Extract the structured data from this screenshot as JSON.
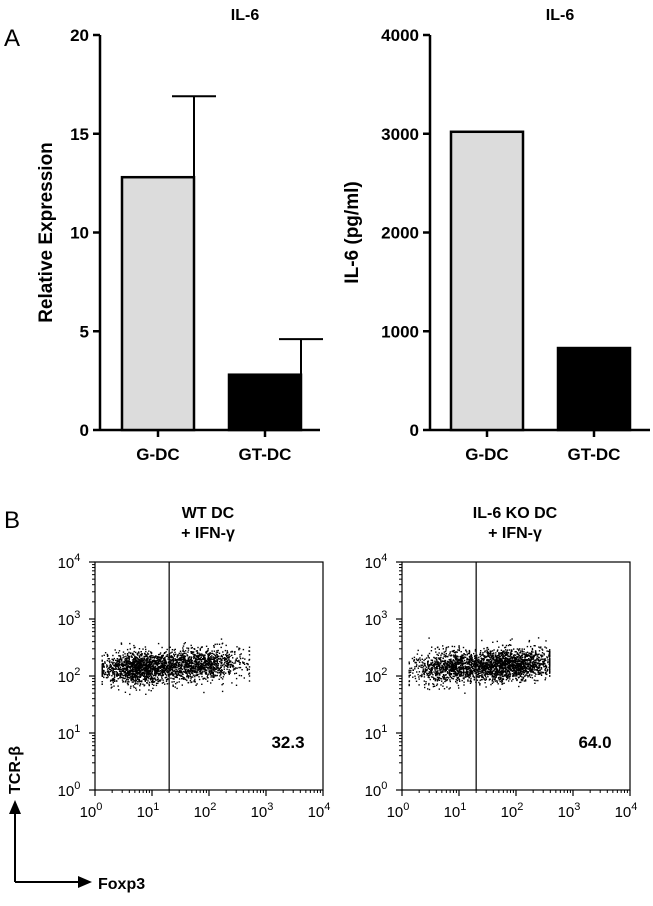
{
  "panel_labels": {
    "a": "A",
    "b": "B"
  },
  "chart_data": [
    {
      "type": "bar",
      "title": "IL-6",
      "ylabel": "Relative Expression",
      "xlabel": "",
      "categories": [
        "G-DC",
        "GT-DC"
      ],
      "values": [
        12.8,
        2.8
      ],
      "errors": [
        4.1,
        1.8
      ],
      "ylim": [
        0,
        20
      ],
      "yticks": [
        "0",
        "5",
        "10",
        "15",
        "20"
      ],
      "bar_colors": [
        "#dcdcdc",
        "#000000"
      ]
    },
    {
      "type": "bar",
      "title": "IL-6",
      "ylabel": "IL-6 (pg/ml)",
      "xlabel": "",
      "categories": [
        "G-DC",
        "GT-DC"
      ],
      "values": [
        3020,
        830
      ],
      "ylim": [
        0,
        4000
      ],
      "yticks": [
        "0",
        "1000",
        "2000",
        "3000",
        "4000"
      ],
      "bar_colors": [
        "#dcdcdc",
        "#000000"
      ]
    },
    {
      "type": "scatter",
      "title_lines": [
        "WT DC",
        "+ IFN-γ"
      ],
      "xlabel": "Foxp3",
      "ylabel": "TCR-β",
      "x_scale": "log",
      "y_scale": "log",
      "xlim": [
        1,
        10000
      ],
      "ylim": [
        1,
        10000
      ],
      "gate_x": 20,
      "gate_percent": "32.3",
      "cluster": {
        "x_range": [
          1.3,
          500
        ],
        "y_center": 150,
        "points": 2600
      }
    },
    {
      "type": "scatter",
      "title_lines": [
        "IL-6 KO DC",
        "+ IFN-γ"
      ],
      "xlabel": "Foxp3",
      "ylabel": "TCR-β",
      "x_scale": "log",
      "y_scale": "log",
      "xlim": [
        1,
        10000
      ],
      "ylim": [
        1,
        10000
      ],
      "gate_x": 20,
      "gate_percent": "64.0",
      "cluster": {
        "x_range": [
          1.3,
          380
        ],
        "y_center": 150,
        "points": 2600
      }
    }
  ],
  "log_tick_base": "10",
  "log_tick_exponents": [
    "0",
    "1",
    "2",
    "3",
    "4"
  ],
  "axis_arrows": {
    "x_label": "Foxp3",
    "y_label": "TCR-β"
  }
}
